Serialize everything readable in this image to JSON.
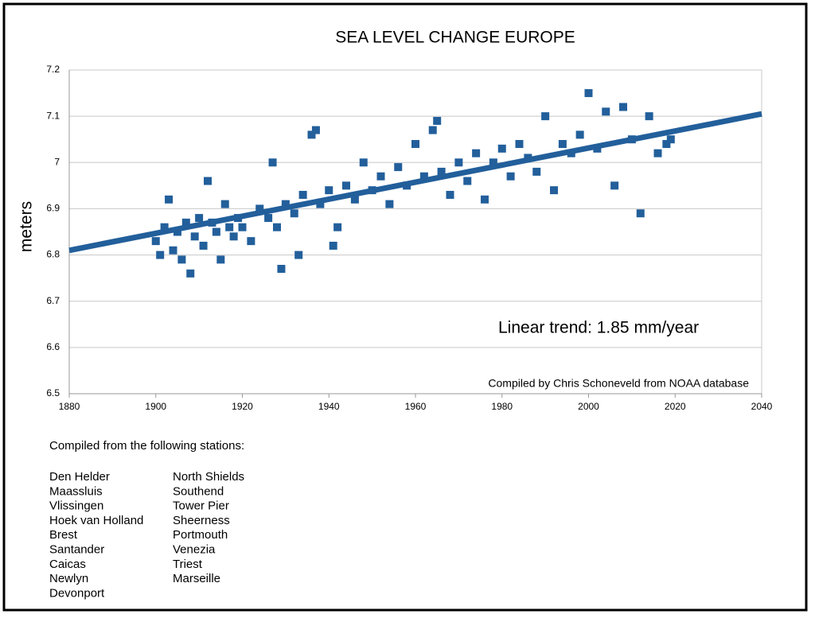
{
  "chart_data": {
    "type": "scatter",
    "title": "SEA LEVEL CHANGE EUROPE",
    "y_label": "meters",
    "annotations": [
      "Linear trend: 1.85 mm/year",
      "Compiled by Chris Schoneveld from NOAA database"
    ],
    "xlim": [
      1880,
      2040
    ],
    "xticks": [
      1880,
      1900,
      1920,
      1940,
      1960,
      1980,
      2000,
      2020,
      2040
    ],
    "ylim": [
      6.5,
      7.2
    ],
    "yticks": [
      6.5,
      6.6,
      6.7,
      6.8,
      6.9,
      7,
      7.1,
      7.2
    ],
    "grid": true,
    "series": [
      {
        "color": "#225f9b",
        "x": [
          1900,
          1901,
          1902,
          1903,
          1904,
          1905,
          1906,
          1907,
          1908,
          1909,
          1910,
          1911,
          1912,
          1913,
          1914,
          1915,
          1916,
          1917,
          1918,
          1919,
          1920,
          1922,
          1924,
          1926,
          1927,
          1928,
          1929,
          1930,
          1932,
          1933,
          1934,
          1936,
          1937,
          1938,
          1940,
          1941,
          1942,
          1944,
          1946,
          1948,
          1950,
          1952,
          1954,
          1956,
          1958,
          1960,
          1962,
          1964,
          1965,
          1966,
          1968,
          1970,
          1972,
          1974,
          1976,
          1978,
          1980,
          1982,
          1984,
          1986,
          1988,
          1990,
          1992,
          1994,
          1996,
          1998,
          2000,
          2002,
          2004,
          2006,
          2008,
          2010,
          2012,
          2014,
          2016,
          2018,
          2019
        ],
        "values": [
          6.83,
          6.8,
          6.86,
          6.92,
          6.81,
          6.85,
          6.79,
          6.87,
          6.76,
          6.84,
          6.88,
          6.82,
          6.96,
          6.87,
          6.85,
          6.79,
          6.91,
          6.86,
          6.84,
          6.88,
          6.86,
          6.83,
          6.9,
          6.88,
          7.0,
          6.86,
          6.77,
          6.91,
          6.89,
          6.8,
          6.93,
          7.06,
          7.07,
          6.91,
          6.94,
          6.82,
          6.86,
          6.95,
          6.92,
          7.0,
          6.94,
          6.97,
          6.91,
          6.99,
          6.95,
          7.04,
          6.97,
          7.07,
          7.09,
          6.98,
          6.93,
          7.0,
          6.96,
          7.02,
          6.92,
          7.0,
          7.03,
          6.97,
          7.04,
          7.01,
          6.98,
          7.1,
          6.94,
          7.04,
          7.02,
          7.06,
          7.15,
          7.03,
          7.11,
          6.95,
          7.12,
          7.05,
          6.89,
          7.1,
          7.02,
          7.04,
          7.05
        ]
      }
    ],
    "trend": {
      "color": "#225f9b",
      "x": [
        1880,
        2040
      ],
      "values": [
        6.81,
        7.105
      ]
    }
  },
  "stations": {
    "heading": "Compiled from the following stations:",
    "column1": [
      "Den Helder",
      "Maassluis",
      "Vlissingen",
      "Hoek van Holland",
      "Brest",
      "Santander",
      "Caicas",
      "Newlyn",
      "Devonport"
    ],
    "column2": [
      "North Shields",
      "Southend",
      "Tower Pier",
      "Sheerness",
      "Portmouth",
      "Venezia",
      "Triest",
      "Marseille"
    ]
  }
}
